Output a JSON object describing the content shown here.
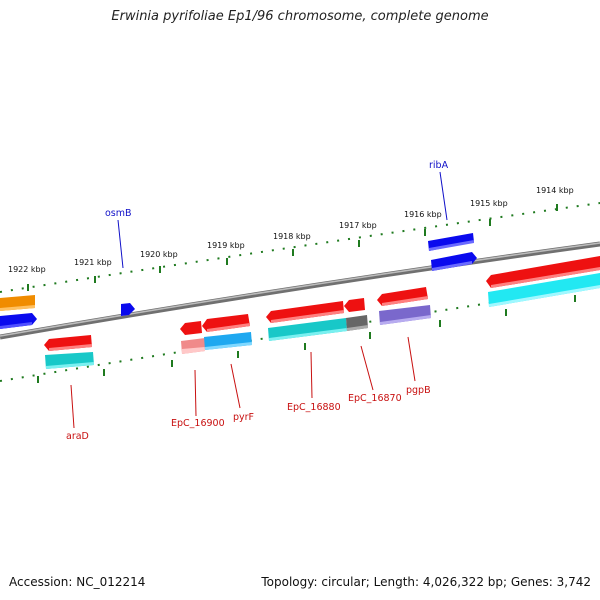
{
  "title": "Erwinia pyrifoliae Ep1/96 chromosome, complete genome",
  "footer": {
    "accession": "Accession: NC_012214",
    "summary": "Topology: circular; Length: 4,026,322 bp; Genes: 3,742"
  },
  "ticks": [
    "1922 kbp",
    "1921 kbp",
    "1920 kbp",
    "1919 kbp",
    "1918 kbp",
    "1917 kbp",
    "1916 kbp",
    "1915 kbp",
    "1914 kbp"
  ],
  "gene_labels": {
    "osmB": "osmB",
    "ribA": "ribA",
    "araD": "araD",
    "EpC_16900": "EpC_16900",
    "pyrF": "pyrF",
    "EpC_16880": "EpC_16880",
    "EpC_16870": "EpC_16870",
    "pgpB": "pgpB"
  },
  "colors": {
    "backbone": "#7a7a7a",
    "tick_dots": "#1f7a1f",
    "forward_strand_gene": "#0a0aee",
    "reverse_strand_gene": "#ee1111",
    "cds_cyan": "#18c8c8",
    "cds_light_cyan": "#22e8f2",
    "cds_blue": "#1ea8f0",
    "cds_orange": "#f08c00",
    "cds_purple": "#7a68cc",
    "cds_gray": "#666666",
    "cds_pink": "#f08a8a",
    "forward_label": "#1010c8",
    "reverse_label": "#c81010"
  }
}
